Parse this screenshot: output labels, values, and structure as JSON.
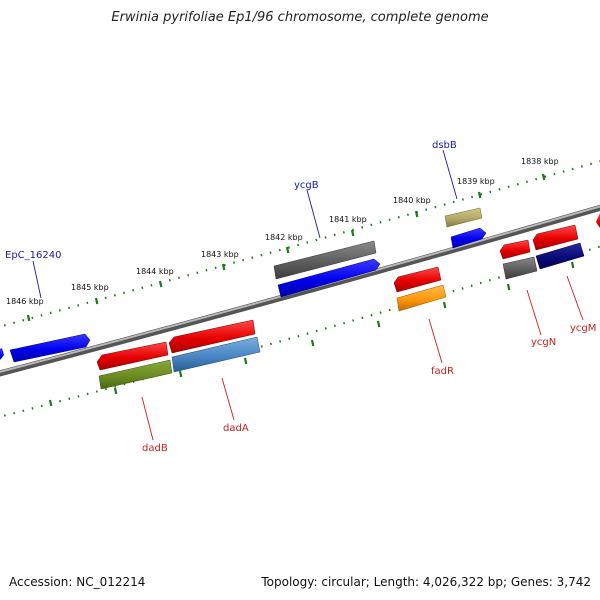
{
  "title": "Erwinia pyrifoliae Ep1/96 chromosome, complete genome",
  "accession": "Accession: NC_012214",
  "summary": "Topology: circular; Length: 4,026,322 bp; Genes: 3,742",
  "colors": {
    "backbone": "#7a7a7a",
    "tick": "#1a7a1a",
    "forward_label": "#1a1aa6",
    "reverse_label": "#c81e1e"
  },
  "scale_labels": [
    "1838 kbp",
    "1839 kbp",
    "1840 kbp",
    "1841 kbp",
    "1842 kbp",
    "1843 kbp",
    "1844 kbp",
    "1845 kbp",
    "1846 kbp"
  ],
  "gene_labels": [
    {
      "name": "EpC_16240",
      "strand": "forward"
    },
    {
      "name": "ycgB",
      "strand": "forward"
    },
    {
      "name": "dsbB",
      "strand": "forward"
    },
    {
      "name": "dadB",
      "strand": "reverse"
    },
    {
      "name": "dadA",
      "strand": "reverse"
    },
    {
      "name": "fadR",
      "strand": "reverse"
    },
    {
      "name": "ycgN",
      "strand": "reverse"
    },
    {
      "name": "ycgM",
      "strand": "reverse"
    }
  ],
  "features": [
    {
      "name": "forward-gene-left-edge",
      "color": "blue-gene"
    },
    {
      "name": "epc-16240-gene",
      "color": "blue-gene"
    },
    {
      "name": "ycgb-gene",
      "color": "blue-gene"
    },
    {
      "name": "ycgb-match-bar",
      "color": "gray-gene"
    },
    {
      "name": "dsbb-gene",
      "color": "blue-gene"
    },
    {
      "name": "dsbb-match-bar",
      "color": "olive-gene"
    },
    {
      "name": "dadb-gene",
      "color": "red-gene"
    },
    {
      "name": "dadb-match-bar",
      "color": "green-gene"
    },
    {
      "name": "dada-gene",
      "color": "red-gene"
    },
    {
      "name": "dada-match-bar",
      "color": "steel-gene"
    },
    {
      "name": "fadr-gene",
      "color": "red-gene"
    },
    {
      "name": "fadr-match-bar",
      "color": "orange-gene"
    },
    {
      "name": "ycgn-gene",
      "color": "red-gene"
    },
    {
      "name": "ycgn-match-bar",
      "color": "gray-gene"
    },
    {
      "name": "ycgm-gene",
      "color": "red-gene"
    },
    {
      "name": "ycgm-match-bar",
      "color": "navy-gene"
    },
    {
      "name": "edge-gene-right",
      "color": "red-gene"
    }
  ]
}
